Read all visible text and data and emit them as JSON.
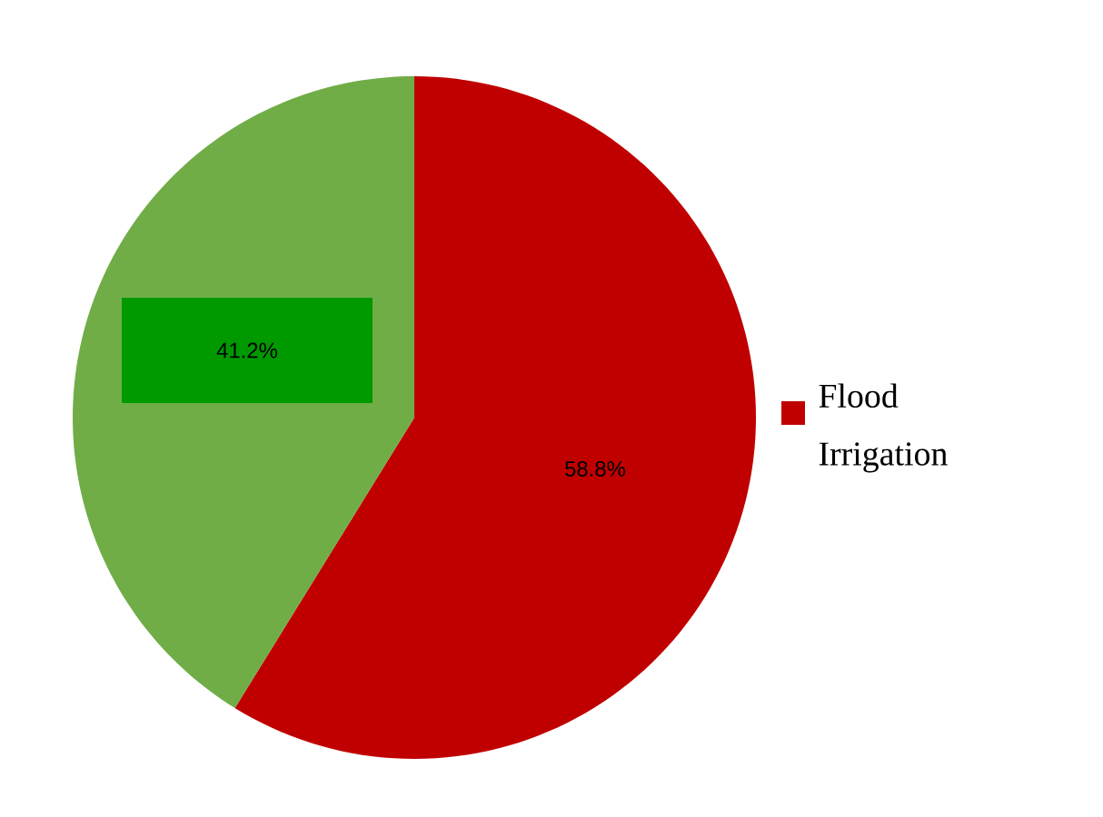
{
  "chart_data": {
    "type": "pie",
    "categories": [
      "Flood Irrigation",
      null
    ],
    "values": [
      58.8,
      41.2
    ],
    "colors": [
      "#c00000",
      "#70ad47"
    ],
    "value_labels": [
      "58.8%",
      "41.2%"
    ],
    "legend": "right"
  }
}
